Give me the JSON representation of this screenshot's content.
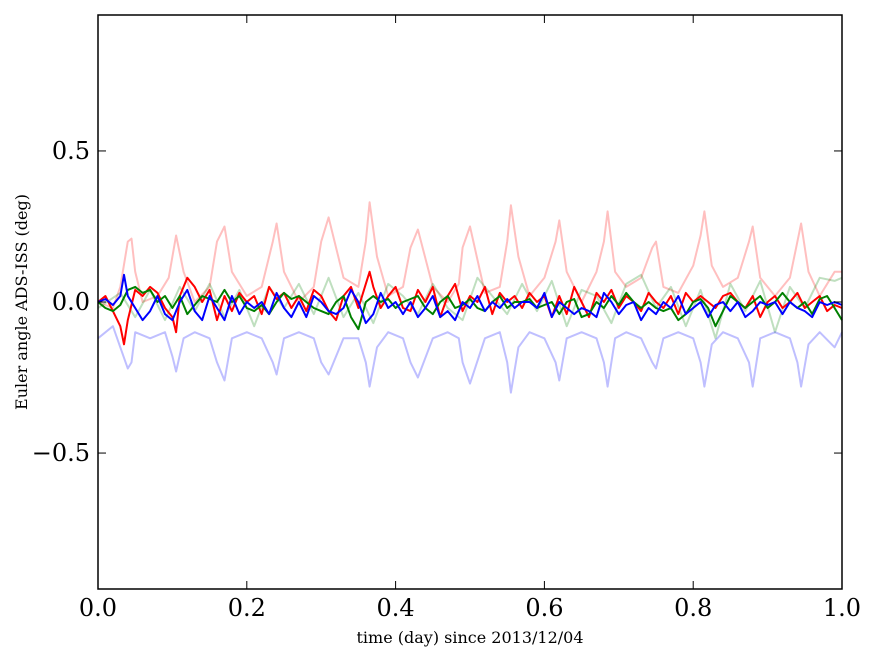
{
  "chart_data": {
    "type": "line",
    "title": "",
    "xlabel": "time (day) since 2013/12/04",
    "ylabel": "Euler angle ADS-ISS (deg)",
    "xlim": [
      0.0,
      1.0
    ],
    "ylim": [
      -0.95,
      0.95
    ],
    "grid": false,
    "legend": "none",
    "xticks": [
      {
        "value": 0.0,
        "label": "0.0"
      },
      {
        "value": 0.2,
        "label": "0.2"
      },
      {
        "value": 0.4,
        "label": "0.4"
      },
      {
        "value": 0.6,
        "label": "0.6"
      },
      {
        "value": 0.8,
        "label": "0.8"
      },
      {
        "value": 1.0,
        "label": "1.0"
      }
    ],
    "yticks": [
      {
        "value": -0.5,
        "label": "−0.5"
      },
      {
        "value": 0.0,
        "label": "0.0"
      },
      {
        "value": 0.5,
        "label": "0.5"
      }
    ],
    "series": [
      {
        "color": "#ff0000",
        "opacity": 0.25,
        "x": [
          0.0,
          0.02,
          0.03,
          0.04,
          0.045,
          0.05,
          0.06,
          0.08,
          0.095,
          0.105,
          0.115,
          0.13,
          0.15,
          0.16,
          0.17,
          0.18,
          0.2,
          0.22,
          0.235,
          0.24,
          0.25,
          0.27,
          0.29,
          0.3,
          0.31,
          0.33,
          0.35,
          0.36,
          0.365,
          0.375,
          0.39,
          0.41,
          0.42,
          0.43,
          0.45,
          0.47,
          0.485,
          0.49,
          0.5,
          0.52,
          0.54,
          0.55,
          0.555,
          0.565,
          0.58,
          0.6,
          0.615,
          0.62,
          0.63,
          0.65,
          0.67,
          0.68,
          0.685,
          0.695,
          0.71,
          0.73,
          0.745,
          0.75,
          0.76,
          0.78,
          0.8,
          0.81,
          0.815,
          0.825,
          0.84,
          0.86,
          0.875,
          0.88,
          0.89,
          0.91,
          0.93,
          0.94,
          0.945,
          0.955,
          0.97,
          0.99,
          1.0
        ],
        "y": [
          0.0,
          -0.02,
          0.05,
          0.2,
          0.21,
          0.1,
          0.0,
          0.02,
          0.08,
          0.22,
          0.1,
          0.0,
          0.05,
          0.2,
          0.25,
          0.1,
          0.02,
          0.05,
          0.2,
          0.26,
          0.1,
          0.0,
          0.05,
          0.2,
          0.28,
          0.08,
          0.05,
          0.2,
          0.33,
          0.15,
          0.02,
          0.05,
          0.18,
          0.24,
          0.05,
          0.0,
          0.06,
          0.18,
          0.25,
          0.03,
          0.05,
          0.2,
          0.32,
          0.15,
          0.02,
          0.08,
          0.2,
          0.27,
          0.1,
          0.0,
          0.1,
          0.2,
          0.3,
          0.1,
          0.05,
          0.08,
          0.18,
          0.2,
          0.05,
          0.03,
          0.12,
          0.22,
          0.3,
          0.12,
          0.05,
          0.08,
          0.2,
          0.25,
          0.08,
          0.02,
          0.08,
          0.2,
          0.26,
          0.1,
          0.02,
          0.1,
          0.1
        ]
      },
      {
        "color": "#008000",
        "opacity": 0.25,
        "x": [
          0.0,
          0.03,
          0.05,
          0.07,
          0.09,
          0.11,
          0.13,
          0.15,
          0.17,
          0.19,
          0.21,
          0.23,
          0.25,
          0.27,
          0.29,
          0.31,
          0.33,
          0.35,
          0.37,
          0.39,
          0.41,
          0.43,
          0.45,
          0.47,
          0.49,
          0.51,
          0.53,
          0.55,
          0.57,
          0.59,
          0.61,
          0.63,
          0.65,
          0.67,
          0.69,
          0.71,
          0.73,
          0.75,
          0.77,
          0.79,
          0.81,
          0.83,
          0.85,
          0.87,
          0.89,
          0.91,
          0.93,
          0.95,
          0.97,
          0.99,
          1.0
        ],
        "y": [
          -0.02,
          0.03,
          -0.05,
          0.04,
          -0.06,
          0.05,
          -0.03,
          0.06,
          -0.05,
          0.04,
          -0.08,
          0.05,
          -0.02,
          0.06,
          -0.04,
          0.08,
          -0.05,
          0.03,
          -0.07,
          0.06,
          0.02,
          -0.04,
          0.06,
          -0.02,
          -0.06,
          0.08,
          0.02,
          -0.04,
          0.06,
          -0.03,
          0.07,
          -0.08,
          0.04,
          0.02,
          -0.07,
          0.06,
          0.09,
          -0.02,
          0.05,
          -0.08,
          0.04,
          -0.12,
          0.06,
          -0.03,
          0.07,
          -0.1,
          0.05,
          -0.02,
          0.08,
          0.07,
          0.08
        ]
      },
      {
        "color": "#0000ff",
        "opacity": 0.25,
        "x": [
          0.0,
          0.02,
          0.03,
          0.04,
          0.045,
          0.05,
          0.07,
          0.09,
          0.1,
          0.105,
          0.115,
          0.13,
          0.15,
          0.16,
          0.17,
          0.18,
          0.2,
          0.22,
          0.235,
          0.24,
          0.25,
          0.27,
          0.29,
          0.3,
          0.31,
          0.33,
          0.35,
          0.36,
          0.365,
          0.375,
          0.39,
          0.41,
          0.42,
          0.43,
          0.45,
          0.47,
          0.485,
          0.49,
          0.5,
          0.52,
          0.54,
          0.55,
          0.555,
          0.565,
          0.58,
          0.6,
          0.615,
          0.62,
          0.63,
          0.65,
          0.67,
          0.68,
          0.685,
          0.695,
          0.71,
          0.73,
          0.745,
          0.75,
          0.76,
          0.78,
          0.8,
          0.81,
          0.815,
          0.825,
          0.84,
          0.86,
          0.875,
          0.88,
          0.89,
          0.91,
          0.93,
          0.94,
          0.945,
          0.955,
          0.97,
          0.99,
          1.0
        ],
        "y": [
          -0.12,
          -0.08,
          -0.15,
          -0.22,
          -0.2,
          -0.1,
          -0.12,
          -0.1,
          -0.18,
          -0.23,
          -0.12,
          -0.1,
          -0.12,
          -0.2,
          -0.26,
          -0.12,
          -0.1,
          -0.12,
          -0.2,
          -0.24,
          -0.12,
          -0.1,
          -0.12,
          -0.2,
          -0.24,
          -0.12,
          -0.12,
          -0.2,
          -0.28,
          -0.15,
          -0.1,
          -0.12,
          -0.2,
          -0.25,
          -0.12,
          -0.1,
          -0.12,
          -0.2,
          -0.27,
          -0.12,
          -0.1,
          -0.2,
          -0.3,
          -0.15,
          -0.1,
          -0.12,
          -0.2,
          -0.26,
          -0.12,
          -0.1,
          -0.12,
          -0.2,
          -0.28,
          -0.12,
          -0.1,
          -0.12,
          -0.2,
          -0.22,
          -0.12,
          -0.1,
          -0.12,
          -0.2,
          -0.28,
          -0.14,
          -0.1,
          -0.12,
          -0.2,
          -0.28,
          -0.12,
          -0.1,
          -0.12,
          -0.2,
          -0.28,
          -0.14,
          -0.1,
          -0.15,
          -0.1
        ]
      },
      {
        "color": "#ff0000",
        "opacity": 1,
        "x": [
          0.0,
          0.01,
          0.02,
          0.03,
          0.035,
          0.04,
          0.05,
          0.06,
          0.07,
          0.08,
          0.09,
          0.1,
          0.105,
          0.11,
          0.12,
          0.13,
          0.14,
          0.15,
          0.16,
          0.17,
          0.18,
          0.19,
          0.2,
          0.21,
          0.22,
          0.23,
          0.24,
          0.25,
          0.26,
          0.27,
          0.28,
          0.29,
          0.3,
          0.31,
          0.32,
          0.33,
          0.34,
          0.35,
          0.36,
          0.365,
          0.37,
          0.38,
          0.39,
          0.4,
          0.41,
          0.42,
          0.43,
          0.44,
          0.45,
          0.46,
          0.47,
          0.48,
          0.49,
          0.5,
          0.51,
          0.52,
          0.53,
          0.54,
          0.55,
          0.56,
          0.57,
          0.58,
          0.59,
          0.6,
          0.61,
          0.62,
          0.63,
          0.64,
          0.65,
          0.66,
          0.67,
          0.68,
          0.69,
          0.7,
          0.71,
          0.72,
          0.73,
          0.74,
          0.75,
          0.76,
          0.77,
          0.78,
          0.79,
          0.8,
          0.81,
          0.82,
          0.83,
          0.84,
          0.85,
          0.86,
          0.87,
          0.88,
          0.89,
          0.9,
          0.91,
          0.92,
          0.93,
          0.94,
          0.95,
          0.96,
          0.97,
          0.98,
          0.99,
          1.0
        ],
        "y": [
          0.0,
          0.02,
          -0.03,
          -0.08,
          -0.14,
          -0.06,
          0.04,
          0.02,
          0.05,
          0.03,
          -0.02,
          -0.05,
          -0.1,
          0.02,
          0.08,
          0.05,
          0.0,
          0.04,
          -0.06,
          0.02,
          -0.03,
          0.03,
          0.0,
          0.02,
          -0.04,
          0.05,
          0.01,
          0.03,
          -0.02,
          0.02,
          -0.03,
          0.04,
          0.02,
          -0.03,
          -0.06,
          0.02,
          0.05,
          -0.02,
          0.06,
          0.1,
          0.05,
          -0.02,
          0.02,
          0.05,
          -0.02,
          -0.03,
          0.04,
          0.0,
          0.05,
          -0.05,
          0.02,
          0.06,
          -0.03,
          0.02,
          0.0,
          0.05,
          -0.04,
          0.03,
          0.0,
          0.02,
          -0.02,
          0.03,
          0.0,
          0.02,
          -0.05,
          0.02,
          -0.04,
          0.05,
          0.0,
          -0.05,
          0.03,
          0.0,
          0.04,
          -0.02,
          0.02,
          0.0,
          -0.03,
          0.03,
          0.0,
          -0.02,
          0.02,
          -0.04,
          0.03,
          0.0,
          0.02,
          0.0,
          -0.02,
          0.02,
          0.03,
          0.0,
          -0.02,
          0.02,
          -0.05,
          0.0,
          0.02,
          -0.02,
          0.0,
          0.03,
          -0.02,
          0.0,
          0.02,
          -0.03,
          -0.01,
          -0.02
        ]
      },
      {
        "color": "#008000",
        "opacity": 1,
        "x": [
          0.0,
          0.01,
          0.02,
          0.03,
          0.04,
          0.05,
          0.06,
          0.07,
          0.08,
          0.09,
          0.1,
          0.11,
          0.12,
          0.13,
          0.14,
          0.15,
          0.16,
          0.17,
          0.18,
          0.19,
          0.2,
          0.21,
          0.22,
          0.23,
          0.24,
          0.25,
          0.26,
          0.27,
          0.28,
          0.29,
          0.3,
          0.31,
          0.32,
          0.33,
          0.34,
          0.35,
          0.36,
          0.37,
          0.38,
          0.39,
          0.4,
          0.41,
          0.42,
          0.43,
          0.44,
          0.45,
          0.46,
          0.47,
          0.48,
          0.49,
          0.5,
          0.51,
          0.52,
          0.53,
          0.54,
          0.55,
          0.56,
          0.57,
          0.58,
          0.59,
          0.6,
          0.61,
          0.62,
          0.63,
          0.64,
          0.65,
          0.66,
          0.67,
          0.68,
          0.69,
          0.7,
          0.71,
          0.72,
          0.73,
          0.74,
          0.75,
          0.76,
          0.77,
          0.78,
          0.79,
          0.8,
          0.81,
          0.82,
          0.83,
          0.84,
          0.85,
          0.86,
          0.87,
          0.88,
          0.89,
          0.9,
          0.91,
          0.92,
          0.93,
          0.94,
          0.95,
          0.96,
          0.97,
          0.98,
          0.99,
          1.0
        ],
        "y": [
          0.0,
          -0.02,
          -0.03,
          -0.01,
          0.04,
          0.05,
          0.03,
          0.04,
          0.0,
          0.02,
          -0.02,
          0.02,
          -0.04,
          -0.01,
          0.02,
          0.01,
          0.0,
          0.04,
          0.0,
          0.02,
          -0.02,
          -0.03,
          -0.01,
          -0.04,
          0.0,
          0.03,
          0.01,
          0.02,
          0.0,
          -0.02,
          -0.03,
          -0.04,
          0.0,
          0.02,
          -0.05,
          -0.09,
          0.0,
          0.02,
          0.0,
          0.01,
          -0.02,
          0.0,
          0.01,
          0.02,
          -0.02,
          -0.04,
          0.0,
          0.02,
          -0.02,
          -0.01,
          0.01,
          -0.02,
          -0.03,
          0.0,
          0.02,
          -0.02,
          0.0,
          0.0,
          0.01,
          -0.02,
          -0.01,
          0.0,
          -0.04,
          0.0,
          0.01,
          -0.05,
          -0.04,
          0.0,
          -0.02,
          0.02,
          -0.01,
          0.03,
          0.0,
          -0.02,
          0.0,
          -0.02,
          -0.03,
          -0.02,
          -0.06,
          -0.04,
          0.0,
          0.01,
          -0.02,
          -0.08,
          -0.03,
          0.02,
          0.0,
          -0.02,
          0.0,
          0.02,
          -0.02,
          0.0,
          0.03,
          0.0,
          -0.02,
          0.0,
          -0.04,
          0.01,
          0.02,
          -0.02,
          -0.06
        ]
      },
      {
        "color": "#0000ff",
        "opacity": 1,
        "x": [
          0.0,
          0.01,
          0.02,
          0.03,
          0.035,
          0.04,
          0.05,
          0.06,
          0.07,
          0.08,
          0.09,
          0.1,
          0.11,
          0.12,
          0.13,
          0.14,
          0.15,
          0.16,
          0.17,
          0.18,
          0.19,
          0.2,
          0.21,
          0.22,
          0.23,
          0.24,
          0.25,
          0.26,
          0.27,
          0.28,
          0.29,
          0.3,
          0.31,
          0.32,
          0.33,
          0.34,
          0.35,
          0.36,
          0.37,
          0.38,
          0.39,
          0.4,
          0.41,
          0.42,
          0.43,
          0.44,
          0.45,
          0.46,
          0.47,
          0.48,
          0.49,
          0.5,
          0.51,
          0.52,
          0.53,
          0.54,
          0.55,
          0.56,
          0.57,
          0.58,
          0.59,
          0.6,
          0.61,
          0.62,
          0.63,
          0.64,
          0.65,
          0.66,
          0.67,
          0.68,
          0.69,
          0.7,
          0.71,
          0.72,
          0.73,
          0.74,
          0.75,
          0.76,
          0.77,
          0.78,
          0.79,
          0.8,
          0.81,
          0.82,
          0.83,
          0.84,
          0.85,
          0.86,
          0.87,
          0.88,
          0.89,
          0.9,
          0.91,
          0.92,
          0.93,
          0.94,
          0.95,
          0.96,
          0.97,
          0.98,
          0.99,
          1.0
        ],
        "y": [
          0.0,
          0.01,
          -0.01,
          0.02,
          0.09,
          0.02,
          -0.02,
          -0.06,
          -0.03,
          0.02,
          -0.04,
          -0.06,
          0.0,
          0.04,
          -0.03,
          -0.06,
          0.02,
          -0.02,
          -0.06,
          0.02,
          -0.04,
          0.0,
          -0.02,
          0.0,
          -0.04,
          0.03,
          -0.02,
          -0.05,
          0.0,
          -0.05,
          0.02,
          0.0,
          -0.03,
          -0.04,
          -0.02,
          0.04,
          0.0,
          -0.07,
          -0.04,
          0.03,
          -0.02,
          0.0,
          -0.04,
          0.0,
          -0.05,
          -0.02,
          0.02,
          -0.05,
          -0.03,
          -0.06,
          0.0,
          -0.02,
          0.02,
          -0.03,
          0.0,
          -0.02,
          0.01,
          -0.02,
          0.0,
          0.0,
          -0.02,
          0.03,
          -0.05,
          0.0,
          -0.02,
          -0.04,
          -0.02,
          -0.03,
          -0.05,
          0.03,
          0.0,
          -0.04,
          -0.01,
          0.0,
          -0.06,
          -0.02,
          -0.04,
          0.0,
          -0.02,
          0.02,
          -0.04,
          -0.02,
          0.0,
          -0.05,
          -0.01,
          0.0,
          -0.03,
          0.0,
          -0.05,
          -0.03,
          0.0,
          -0.01,
          0.0,
          -0.04,
          0.0,
          -0.02,
          -0.03,
          -0.05,
          0.0,
          -0.01,
          0.0,
          -0.01
        ]
      }
    ]
  }
}
